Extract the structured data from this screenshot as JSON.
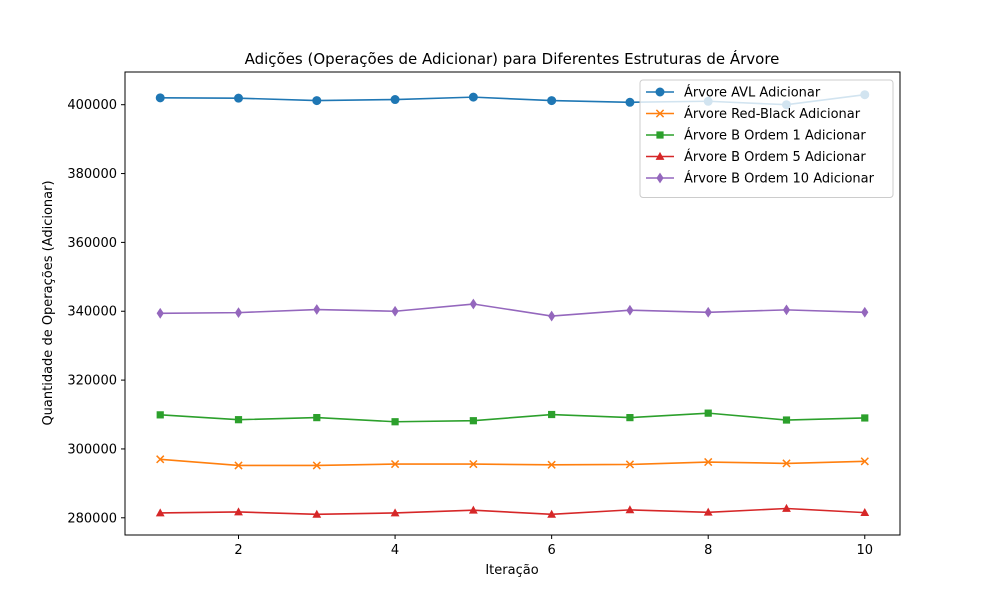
{
  "chart_data": {
    "type": "line",
    "title": "Adições (Operações de Adicionar) para Diferentes Estruturas de Árvore",
    "xlabel": "Iteração",
    "ylabel": "Quantidade de Operações (Adicionar)",
    "x": [
      1,
      2,
      3,
      4,
      5,
      6,
      7,
      8,
      9,
      10
    ],
    "xlim": [
      0.55,
      10.45
    ],
    "ylim": [
      275000,
      409500
    ],
    "xticks": [
      2,
      4,
      6,
      8,
      10
    ],
    "xtick_labels": [
      "2",
      "4",
      "6",
      "8",
      "10"
    ],
    "yticks": [
      280000,
      300000,
      320000,
      340000,
      360000,
      380000,
      400000
    ],
    "ytick_labels": [
      "280000",
      "300000",
      "320000",
      "340000",
      "360000",
      "380000",
      "400000"
    ],
    "grid": false,
    "legend_position": "top-right",
    "series": [
      {
        "name": "Árvore AVL Adicionar",
        "color": "#1f77b4",
        "marker": "circle",
        "values": [
          402000,
          401900,
          401200,
          401500,
          402200,
          401200,
          400700,
          401000,
          400000,
          402900
        ]
      },
      {
        "name": "Árvore Red-Black Adicionar",
        "color": "#ff7f0e",
        "marker": "x",
        "values": [
          297000,
          295200,
          295200,
          295600,
          295600,
          295400,
          295500,
          296200,
          295800,
          296400
        ]
      },
      {
        "name": "Árvore B Ordem 1 Adicionar",
        "color": "#2ca02c",
        "marker": "square",
        "values": [
          309900,
          308500,
          309100,
          307900,
          308200,
          310000,
          309100,
          310400,
          308400,
          309000
        ]
      },
      {
        "name": "Árvore B Ordem 5 Adicionar",
        "color": "#d62728",
        "marker": "triangle",
        "values": [
          281400,
          281700,
          281000,
          281400,
          282200,
          281000,
          282300,
          281600,
          282700,
          281500
        ]
      },
      {
        "name": "Árvore B Ordem 10 Adicionar",
        "color": "#9467bd",
        "marker": "diamond",
        "values": [
          339400,
          339600,
          340500,
          340000,
          342100,
          338600,
          340300,
          339700,
          340400,
          339700
        ]
      }
    ]
  }
}
